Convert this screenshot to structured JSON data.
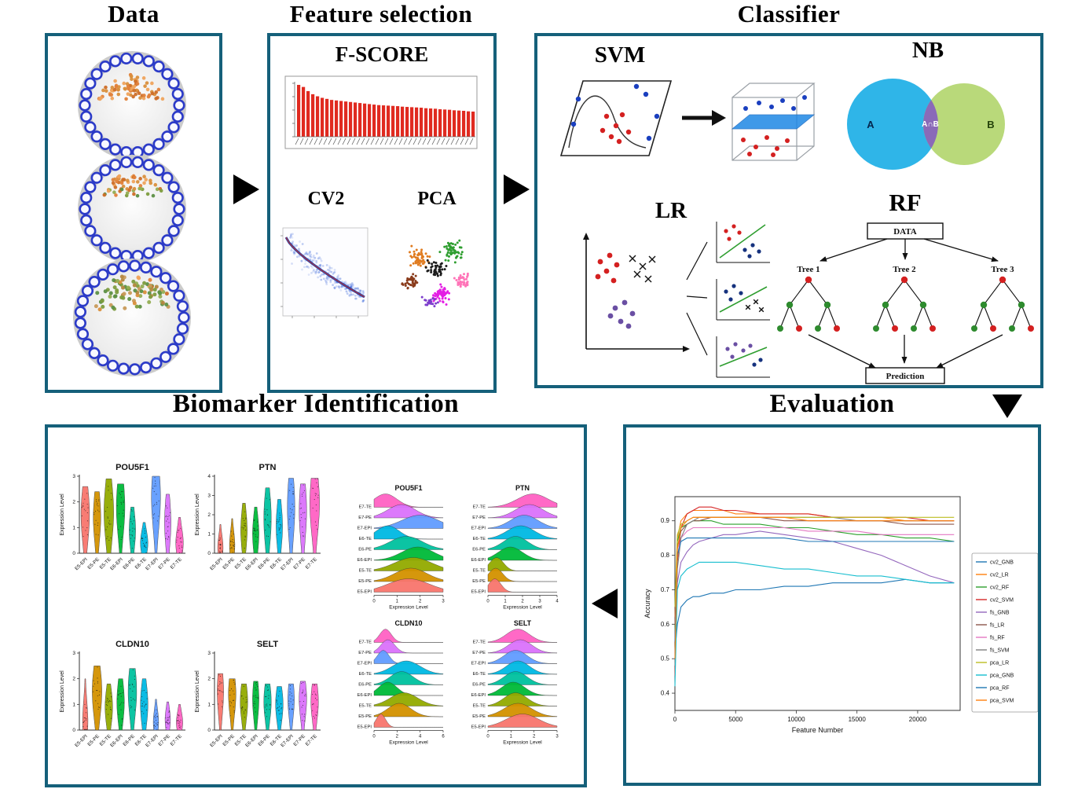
{
  "colors": {
    "panel_border": "#15607a",
    "arrow": "#000000",
    "fscore_bar": "#e02a20",
    "palette9": [
      "#F8766D",
      "#D39200",
      "#93AA00",
      "#00BA38",
      "#00C19F",
      "#00B9E3",
      "#619CFF",
      "#DB72FB",
      "#FF61C3"
    ]
  },
  "data_panel": {
    "title": "Data"
  },
  "feature_panel": {
    "title": "Feature selection",
    "fscore_label": "F-SCORE",
    "cv2_label": "CV2",
    "pca_label": "PCA",
    "fscore_values": [
      1.0,
      0.96,
      0.88,
      0.82,
      0.78,
      0.75,
      0.73,
      0.71,
      0.7,
      0.69,
      0.68,
      0.67,
      0.66,
      0.65,
      0.64,
      0.63,
      0.62,
      0.61,
      0.605,
      0.6,
      0.595,
      0.59,
      0.58,
      0.575,
      0.57,
      0.565,
      0.56,
      0.55,
      0.545,
      0.54,
      0.53,
      0.525,
      0.52,
      0.51,
      0.505,
      0.5,
      0.49,
      0.485
    ]
  },
  "classifier_panel": {
    "title": "Classifier",
    "svm_label": "SVM",
    "nb_label": "NB",
    "lr_label": "LR",
    "rf_label": "RF",
    "venn": {
      "a": "A",
      "ab": "A∩B",
      "b": "B"
    },
    "rf": {
      "data_label": "DATA",
      "tree_labels": [
        "Tree 1",
        "Tree 2",
        "Tree 3"
      ],
      "prediction_label": "Prediction"
    }
  },
  "biomarker_panel": {
    "title": "Biomarker Identification",
    "expression_label": "Expression Level",
    "categories": [
      "E5-EPI",
      "E5-PE",
      "E5-TE",
      "E6-EPI",
      "E6-PE",
      "E6-TE",
      "E7-EPI",
      "E7-PE",
      "E7-TE"
    ],
    "ridge_categories": [
      "E7-TE",
      "E7-PE",
      "E7-EPI",
      "E6-TE",
      "E6-PE",
      "E6-EPI",
      "E5-TE",
      "E5-PE",
      "E5-EPI"
    ],
    "violins": [
      {
        "gene": "POU5F1",
        "ymax": 3,
        "yticks": [
          0,
          1,
          2,
          3
        ],
        "shapes": [
          [
            2.6,
            1.5,
            0.8
          ],
          [
            2.4,
            1.4,
            0.7
          ],
          [
            2.9,
            1.6,
            0.9
          ],
          [
            2.7,
            1.8,
            0.8
          ],
          [
            1.8,
            0.9,
            0.6
          ],
          [
            1.2,
            0.4,
            0.7
          ],
          [
            3.0,
            2.2,
            0.85
          ],
          [
            2.3,
            1.2,
            0.6
          ],
          [
            1.4,
            0.4,
            0.7
          ]
        ]
      },
      {
        "gene": "PTN",
        "ymax": 4,
        "yticks": [
          0,
          1,
          2,
          3,
          4
        ],
        "shapes": [
          [
            1.5,
            0.3,
            0.5
          ],
          [
            1.8,
            0.4,
            0.5
          ],
          [
            2.6,
            1.2,
            0.6
          ],
          [
            2.4,
            1.0,
            0.6
          ],
          [
            3.4,
            1.8,
            0.7
          ],
          [
            2.8,
            1.4,
            0.6
          ],
          [
            3.9,
            2.4,
            0.7
          ],
          [
            3.6,
            2.2,
            0.7
          ],
          [
            3.9,
            2.6,
            0.9
          ]
        ]
      },
      {
        "gene": "CLDN10",
        "ymax": 3,
        "yticks": [
          0,
          1,
          2,
          3
        ],
        "shapes": [
          [
            2.0,
            0.3,
            0.5
          ],
          [
            2.5,
            1.5,
            0.9
          ],
          [
            1.8,
            0.9,
            0.7
          ],
          [
            2.0,
            1.1,
            0.7
          ],
          [
            2.4,
            1.5,
            0.8
          ],
          [
            2.0,
            1.0,
            0.7
          ],
          [
            1.2,
            0.3,
            0.5
          ],
          [
            1.1,
            0.4,
            0.5
          ],
          [
            1.0,
            0.3,
            0.6
          ]
        ]
      },
      {
        "gene": "SELT",
        "ymax": 3,
        "yticks": [
          0,
          1,
          2,
          3
        ],
        "shapes": [
          [
            2.2,
            1.5,
            0.6
          ],
          [
            2.0,
            1.4,
            0.7
          ],
          [
            1.8,
            1.1,
            0.7
          ],
          [
            1.9,
            1.2,
            0.6
          ],
          [
            1.8,
            1.1,
            0.7
          ],
          [
            1.7,
            1.0,
            0.7
          ],
          [
            1.8,
            1.2,
            0.6
          ],
          [
            1.9,
            1.2,
            0.7
          ],
          [
            1.8,
            1.1,
            0.7
          ]
        ]
      }
    ],
    "ridges": [
      {
        "gene": "POU5F1",
        "xmax": 3,
        "xticks": [
          0,
          1,
          2,
          3
        ],
        "peaks": [
          [
            0.5,
            0.5
          ],
          [
            1.2,
            0.6
          ],
          [
            2.0,
            0.8
          ],
          [
            0.6,
            0.5
          ],
          [
            1.4,
            0.7
          ],
          [
            1.9,
            0.7
          ],
          [
            1.7,
            0.8
          ],
          [
            1.6,
            0.7
          ],
          [
            1.5,
            0.9
          ]
        ]
      },
      {
        "gene": "PTN",
        "xmax": 4,
        "xticks": [
          0,
          1,
          2,
          3,
          4
        ],
        "peaks": [
          [
            2.6,
            0.9
          ],
          [
            2.4,
            0.8
          ],
          [
            2.1,
            0.8
          ],
          [
            1.9,
            0.8
          ],
          [
            1.6,
            0.7
          ],
          [
            1.3,
            0.7
          ],
          [
            0.5,
            0.4
          ],
          [
            0.45,
            0.4
          ],
          [
            0.4,
            0.35
          ]
        ]
      },
      {
        "gene": "CLDN10",
        "xmax": 6,
        "xticks": [
          0,
          2,
          4,
          6
        ],
        "peaks": [
          [
            1.0,
            0.5
          ],
          [
            1.2,
            0.6
          ],
          [
            0.8,
            0.5
          ],
          [
            2.8,
            1.2
          ],
          [
            2.4,
            1.0
          ],
          [
            1.2,
            0.8
          ],
          [
            2.6,
            1.2
          ],
          [
            2.2,
            1.0
          ],
          [
            0.6,
            0.4
          ]
        ]
      },
      {
        "gene": "SELT",
        "xmax": 3,
        "xticks": [
          0,
          1,
          2,
          3
        ],
        "peaks": [
          [
            1.3,
            0.5
          ],
          [
            1.4,
            0.5
          ],
          [
            1.2,
            0.5
          ],
          [
            1.3,
            0.5
          ],
          [
            1.2,
            0.5
          ],
          [
            1.1,
            0.5
          ],
          [
            1.2,
            0.5
          ],
          [
            1.3,
            0.6
          ],
          [
            1.5,
            0.7
          ]
        ]
      }
    ]
  },
  "evaluation_panel": {
    "title": "Evaluation",
    "xlabel": "Feature Number",
    "ylabel": "Accuracy",
    "xticks": [
      0,
      5000,
      10000,
      15000,
      20000
    ],
    "yticks": [
      0.4,
      0.5,
      0.6,
      0.7,
      0.8,
      0.9
    ],
    "x": [
      0,
      200,
      500,
      1000,
      1500,
      2000,
      3000,
      4000,
      5000,
      7000,
      9000,
      11000,
      13000,
      15000,
      17000,
      19000,
      21000,
      23000
    ],
    "series": [
      {
        "name": "cv2_GNB",
        "color": "#1f77b4",
        "values": [
          0.52,
          0.6,
          0.65,
          0.67,
          0.68,
          0.68,
          0.69,
          0.69,
          0.7,
          0.7,
          0.71,
          0.71,
          0.72,
          0.72,
          0.72,
          0.73,
          0.72,
          0.72
        ]
      },
      {
        "name": "cv2_LR",
        "color": "#ff7f0e",
        "values": [
          0.62,
          0.85,
          0.9,
          0.92,
          0.93,
          0.93,
          0.93,
          0.93,
          0.92,
          0.92,
          0.92,
          0.92,
          0.91,
          0.91,
          0.91,
          0.9,
          0.9,
          0.9
        ]
      },
      {
        "name": "cv2_RF",
        "color": "#2ca02c",
        "values": [
          0.58,
          0.84,
          0.88,
          0.89,
          0.9,
          0.9,
          0.9,
          0.89,
          0.89,
          0.89,
          0.88,
          0.88,
          0.87,
          0.86,
          0.86,
          0.85,
          0.85,
          0.84
        ]
      },
      {
        "name": "cv2_SVM",
        "color": "#d62728",
        "values": [
          0.45,
          0.78,
          0.88,
          0.92,
          0.93,
          0.94,
          0.94,
          0.93,
          0.93,
          0.92,
          0.92,
          0.92,
          0.91,
          0.91,
          0.91,
          0.91,
          0.9,
          0.9
        ]
      },
      {
        "name": "fs_GNB",
        "color": "#9467bd",
        "values": [
          0.5,
          0.72,
          0.78,
          0.81,
          0.83,
          0.84,
          0.85,
          0.86,
          0.86,
          0.87,
          0.86,
          0.85,
          0.84,
          0.82,
          0.8,
          0.77,
          0.74,
          0.72
        ]
      },
      {
        "name": "fs_LR",
        "color": "#8c564b",
        "values": [
          0.6,
          0.82,
          0.87,
          0.89,
          0.9,
          0.9,
          0.91,
          0.91,
          0.91,
          0.91,
          0.9,
          0.9,
          0.9,
          0.9,
          0.9,
          0.89,
          0.89,
          0.89
        ]
      },
      {
        "name": "fs_RF",
        "color": "#e377c2",
        "values": [
          0.55,
          0.8,
          0.85,
          0.87,
          0.88,
          0.88,
          0.88,
          0.88,
          0.88,
          0.88,
          0.88,
          0.87,
          0.87,
          0.87,
          0.86,
          0.86,
          0.86,
          0.86
        ]
      },
      {
        "name": "fs_SVM",
        "color": "#7f7f7f",
        "values": [
          0.48,
          0.76,
          0.85,
          0.89,
          0.9,
          0.91,
          0.91,
          0.91,
          0.91,
          0.91,
          0.91,
          0.91,
          0.91,
          0.9,
          0.9,
          0.9,
          0.9,
          0.9
        ]
      },
      {
        "name": "pca_LR",
        "color": "#bcbd22",
        "values": [
          0.65,
          0.86,
          0.89,
          0.9,
          0.91,
          0.91,
          0.91,
          0.91,
          0.91,
          0.91,
          0.91,
          0.91,
          0.91,
          0.91,
          0.91,
          0.91,
          0.91,
          0.91
        ]
      },
      {
        "name": "pca_GNB",
        "color": "#17becf",
        "values": [
          0.42,
          0.7,
          0.74,
          0.76,
          0.77,
          0.78,
          0.78,
          0.78,
          0.78,
          0.77,
          0.76,
          0.76,
          0.75,
          0.74,
          0.74,
          0.73,
          0.72,
          0.72
        ]
      },
      {
        "name": "pca_RF",
        "color": "#1f77b4",
        "values": [
          0.55,
          0.8,
          0.84,
          0.85,
          0.85,
          0.85,
          0.85,
          0.85,
          0.85,
          0.85,
          0.85,
          0.84,
          0.84,
          0.84,
          0.84,
          0.84,
          0.84,
          0.84
        ]
      },
      {
        "name": "pca_SVM",
        "color": "#ff7f0e",
        "values": [
          0.5,
          0.82,
          0.88,
          0.9,
          0.91,
          0.91,
          0.91,
          0.91,
          0.91,
          0.91,
          0.91,
          0.9,
          0.9,
          0.9,
          0.9,
          0.9,
          0.9,
          0.9
        ]
      }
    ]
  }
}
